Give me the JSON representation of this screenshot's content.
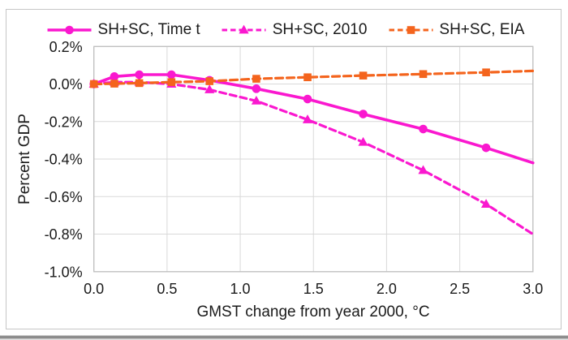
{
  "chart_data": {
    "type": "line",
    "title": "",
    "xlabel": "GMST change from year 2000, °C",
    "ylabel": "Percent GDP",
    "xlim": [
      0.0,
      3.0
    ],
    "ylim": [
      -1.0,
      0.2
    ],
    "grid": true,
    "legend_position": "top",
    "x_ticks": [
      {
        "value": 0.0,
        "label": "0.0"
      },
      {
        "value": 0.5,
        "label": "0.5"
      },
      {
        "value": 1.0,
        "label": "1.0"
      },
      {
        "value": 1.5,
        "label": "1.5"
      },
      {
        "value": 2.0,
        "label": "2.0"
      },
      {
        "value": 2.5,
        "label": "2.5"
      },
      {
        "value": 3.0,
        "label": "3.0"
      }
    ],
    "y_ticks": [
      {
        "value": 0.2,
        "label": "0.2%"
      },
      {
        "value": 0.0,
        "label": "0.0%"
      },
      {
        "value": -0.2,
        "label": "-0.2%"
      },
      {
        "value": -0.4,
        "label": "-0.4%"
      },
      {
        "value": -0.6,
        "label": "-0.6%"
      },
      {
        "value": -0.8,
        "label": "-0.8%"
      },
      {
        "value": -1.0,
        "label": "-1.0%"
      }
    ],
    "x": [
      0.0,
      0.14,
      0.31,
      0.53,
      0.79,
      1.11,
      1.46,
      1.84,
      2.25,
      2.68,
      3.0
    ],
    "series": [
      {
        "name": "SH+SC, Time t",
        "color": "#FA18CF",
        "line": "solid",
        "marker": "circle",
        "marker_count": 10,
        "values": [
          0.0,
          0.04,
          0.05,
          0.05,
          0.02,
          -0.025,
          -0.08,
          -0.16,
          -0.24,
          -0.34,
          -0.42
        ]
      },
      {
        "name": "SH+SC, 2010",
        "color": "#FA18CF",
        "line": "dashed",
        "marker": "triangle",
        "marker_count": 10,
        "values": [
          0.0,
          0.01,
          0.01,
          0.0,
          -0.03,
          -0.09,
          -0.19,
          -0.31,
          -0.46,
          -0.64,
          -0.8
        ]
      },
      {
        "name": "SH+SC, EIA",
        "color": "#F4641D",
        "line": "dashed",
        "marker": "square",
        "marker_count": 10,
        "values": [
          0.0,
          0.002,
          0.005,
          0.01,
          0.015,
          0.028,
          0.036,
          0.045,
          0.053,
          0.062,
          0.07
        ]
      }
    ],
    "colors": {
      "gridline": "#D9D9D9",
      "plot_border": "#BFBFBF",
      "text": "#1A1A1A",
      "magenta": "#FA18CF",
      "orange": "#F4641D"
    }
  }
}
